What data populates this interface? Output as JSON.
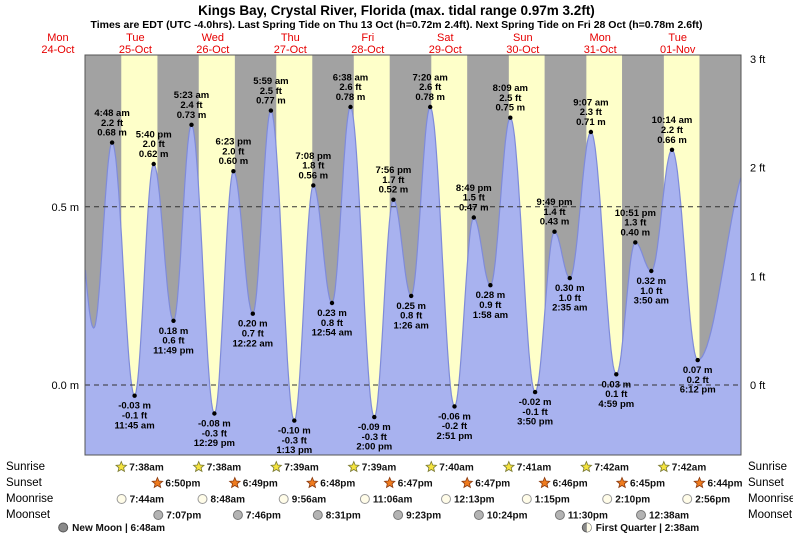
{
  "title": "Kings Bay, Crystal River, Florida (max. tidal range 0.97m 3.2ft)",
  "subtitle": "Times are EDT (UTC -4.0hrs). Last Spring Tide on Thu 13 Oct (h=0.72m 2.4ft). Next Spring Tide on Fri 28 Oct (h=0.78m 2.6ft)",
  "colors": {
    "night_band": "#a2a2a2",
    "day_band": "#feffc9",
    "tide_fill": "#a8b2ef",
    "tide_stroke": "#7f8bd9",
    "day_label": "#e60000",
    "grid": "#333333",
    "annotation": "#000000"
  },
  "days": [
    {
      "name": "Mon",
      "date": "24-Oct",
      "noon_hour": 12
    },
    {
      "name": "Tue",
      "date": "25-Oct",
      "noon_hour": 36
    },
    {
      "name": "Wed",
      "date": "26-Oct",
      "noon_hour": 60
    },
    {
      "name": "Thu",
      "date": "27-Oct",
      "noon_hour": 84
    },
    {
      "name": "Fri",
      "date": "28-Oct",
      "noon_hour": 108
    },
    {
      "name": "Sat",
      "date": "29-Oct",
      "noon_hour": 132
    },
    {
      "name": "Sun",
      "date": "30-Oct",
      "noon_hour": 156
    },
    {
      "name": "Mon",
      "date": "31-Oct",
      "noon_hour": 180
    },
    {
      "name": "Tue",
      "date": "01-Nov",
      "noon_hour": 204
    }
  ],
  "axis": {
    "left": [
      {
        "label": "0.5 m",
        "m": 0.5
      },
      {
        "label": "0.0 m",
        "m": 0.0
      }
    ],
    "right": [
      {
        "label": "3 ft",
        "m": 0.9144
      },
      {
        "label": "2 ft",
        "m": 0.6096
      },
      {
        "label": "1 ft",
        "m": 0.3048
      },
      {
        "label": "0 ft",
        "m": 0.0
      }
    ]
  },
  "chart_data": {
    "type": "area",
    "title": "Kings Bay, Crystal River, Florida tide curve",
    "x_unit": "hours from Mon 24-Oct 00:00 EDT",
    "visible_range_hours": [
      20.4,
      223.6
    ],
    "y_axis": {
      "left_unit": "m",
      "right_unit": "ft",
      "left_ticks_m": [
        0.0,
        0.5
      ],
      "right_ticks_ft": [
        0,
        1,
        2,
        3
      ]
    },
    "edge_points_pre": [
      {
        "hour": 16.9,
        "m": "0.60"
      },
      {
        "hour": 23.1,
        "m": "0.16"
      }
    ],
    "edge_points_post": [
      {
        "hour": 227.0,
        "m": "0.64"
      }
    ],
    "extremes": [
      {
        "type": "high",
        "day": "Tue 25-Oct",
        "time": "4:48 am",
        "ft": "2.2",
        "m": "0.68",
        "hour": 28.8
      },
      {
        "type": "low",
        "day": "Tue 25-Oct",
        "time": "11:45 am",
        "ft": "-0.1",
        "m": "-0.03",
        "hour": 35.75
      },
      {
        "type": "high",
        "day": "Tue 25-Oct",
        "time": "5:40 pm",
        "ft": "2.0",
        "m": "0.62",
        "hour": 41.67
      },
      {
        "type": "low",
        "day": "Tue 25-Oct",
        "time": "11:49 pm",
        "ft": "0.6",
        "m": "0.18",
        "hour": 47.82
      },
      {
        "type": "high",
        "day": "Wed 26-Oct",
        "time": "5:23 am",
        "ft": "2.4",
        "m": "0.73",
        "hour": 53.38
      },
      {
        "type": "low",
        "day": "Wed 26-Oct",
        "time": "12:29 pm",
        "ft": "-0.3",
        "m": "-0.08",
        "hour": 60.48
      },
      {
        "type": "high",
        "day": "Wed 26-Oct",
        "time": "6:23 pm",
        "ft": "2.0",
        "m": "0.60",
        "hour": 66.38
      },
      {
        "type": "low",
        "day": "Thu 27-Oct",
        "time": "12:22 am",
        "ft": "0.7",
        "m": "0.20",
        "hour": 72.37
      },
      {
        "type": "high",
        "day": "Thu 27-Oct",
        "time": "5:59 am",
        "ft": "2.5",
        "m": "0.77",
        "hour": 77.98
      },
      {
        "type": "low",
        "day": "Thu 27-Oct",
        "time": "1:13 pm",
        "ft": "-0.3",
        "m": "-0.10",
        "hour": 85.22
      },
      {
        "type": "high",
        "day": "Thu 27-Oct",
        "time": "7:08 pm",
        "ft": "1.8",
        "m": "0.56",
        "hour": 91.13
      },
      {
        "type": "low",
        "day": "Fri 28-Oct",
        "time": "12:54 am",
        "ft": "0.8",
        "m": "0.23",
        "hour": 96.9
      },
      {
        "type": "high",
        "day": "Fri 28-Oct",
        "time": "6:38 am",
        "ft": "2.6",
        "m": "0.78",
        "hour": 102.63
      },
      {
        "type": "low",
        "day": "Fri 28-Oct",
        "time": "2:00 pm",
        "ft": "-0.3",
        "m": "-0.09",
        "hour": 110.0
      },
      {
        "type": "high",
        "day": "Fri 28-Oct",
        "time": "7:56 pm",
        "ft": "1.7",
        "m": "0.52",
        "hour": 115.93
      },
      {
        "type": "low",
        "day": "Sat 29-Oct",
        "time": "1:26 am",
        "ft": "0.8",
        "m": "0.25",
        "hour": 121.43
      },
      {
        "type": "high",
        "day": "Sat 29-Oct",
        "time": "7:20 am",
        "ft": "2.6",
        "m": "0.78",
        "hour": 127.33
      },
      {
        "type": "low",
        "day": "Sat 29-Oct",
        "time": "2:51 pm",
        "ft": "-0.2",
        "m": "-0.06",
        "hour": 134.85
      },
      {
        "type": "high",
        "day": "Sat 29-Oct",
        "time": "8:49 pm",
        "ft": "1.5",
        "m": "0.47",
        "hour": 140.82
      },
      {
        "type": "low",
        "day": "Sun 30-Oct",
        "time": "1:58 am",
        "ft": "0.9",
        "m": "0.28",
        "hour": 145.97
      },
      {
        "type": "high",
        "day": "Sun 30-Oct",
        "time": "8:09 am",
        "ft": "2.5",
        "m": "0.75",
        "hour": 152.15
      },
      {
        "type": "low",
        "day": "Sun 30-Oct",
        "time": "3:50 pm",
        "ft": "-0.1",
        "m": "-0.02",
        "hour": 159.83
      },
      {
        "type": "high",
        "day": "Sun 30-Oct",
        "time": "9:49 pm",
        "ft": "1.4",
        "m": "0.43",
        "hour": 165.82
      },
      {
        "type": "low",
        "day": "Mon 31-Oct",
        "time": "2:35 am",
        "ft": "1.0",
        "m": "0.30",
        "hour": 170.58
      },
      {
        "type": "high",
        "day": "Mon 31-Oct",
        "time": "9:07 am",
        "ft": "2.3",
        "m": "0.71",
        "hour": 177.12
      },
      {
        "type": "low",
        "day": "Mon 31-Oct",
        "time": "4:59 pm",
        "ft": "0.1",
        "m": "0.03",
        "hour": 184.98
      },
      {
        "type": "high",
        "day": "Mon 31-Oct",
        "time": "10:51 pm",
        "ft": "1.3",
        "m": "0.40",
        "hour": 190.85
      },
      {
        "type": "low",
        "day": "Tue 01-Nov",
        "time": "3:50 am",
        "ft": "1.0",
        "m": "0.32",
        "hour": 195.83
      },
      {
        "type": "high",
        "day": "Tue 01-Nov",
        "time": "10:14 am",
        "ft": "2.2",
        "m": "0.66",
        "hour": 202.23
      },
      {
        "type": "low",
        "day": "Tue 01-Nov",
        "time": "6:12 pm",
        "ft": "0.2",
        "m": "0.07",
        "hour": 210.2
      }
    ]
  },
  "astro": {
    "row_labels": [
      "Sunrise",
      "Sunset",
      "Moonrise",
      "Moonset"
    ],
    "sunrise": [
      "7:38am",
      "7:38am",
      "7:39am",
      "7:39am",
      "7:40am",
      "7:41am",
      "7:42am",
      "7:42am"
    ],
    "sunset": [
      "6:50pm",
      "6:49pm",
      "6:48pm",
      "6:47pm",
      "6:47pm",
      "6:46pm",
      "6:45pm",
      "6:44pm"
    ],
    "moonrise": [
      "7:44am",
      "8:48am",
      "9:56am",
      "11:06am",
      "12:13pm",
      "1:15pm",
      "2:10pm",
      "2:56pm"
    ],
    "moonset": [
      {
        "day": 0,
        "time": "7:07pm"
      },
      {
        "day": 1,
        "time": "7:46pm"
      },
      {
        "day": 2,
        "time": "8:31pm"
      },
      {
        "day": 3,
        "time": "9:23pm"
      },
      {
        "day": 4,
        "time": "10:24pm"
      },
      {
        "day": 5,
        "time": "11:30pm"
      },
      {
        "day": 7,
        "time": "12:38am"
      }
    ],
    "phases": [
      {
        "name": "New Moon",
        "time": "6:48am",
        "hour": 30.8
      },
      {
        "name": "First Quarter",
        "time": "2:38am",
        "hour": 194.63
      }
    ]
  }
}
